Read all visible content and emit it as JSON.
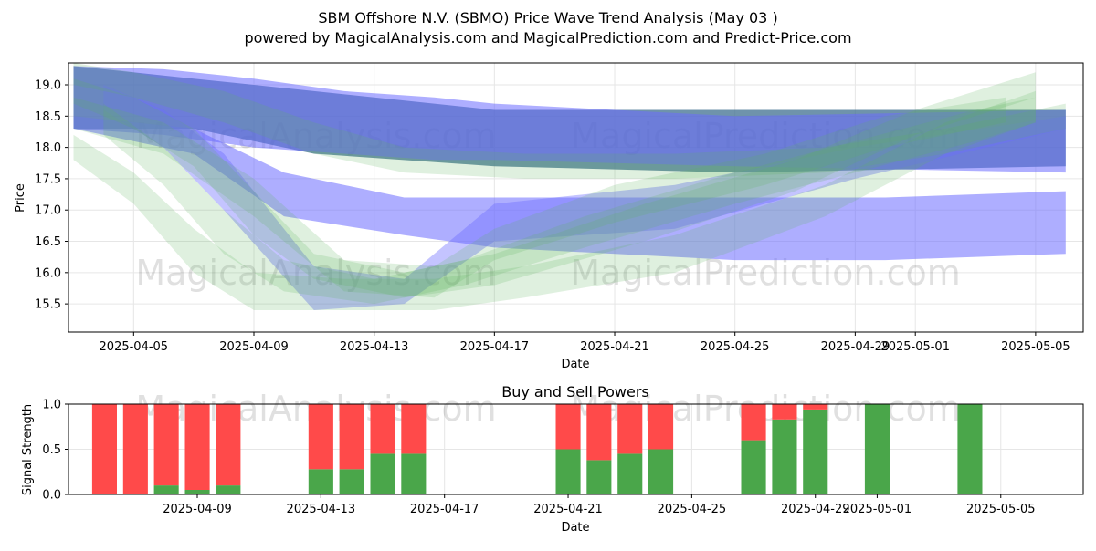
{
  "title_line1": "SBM Offshore N.V. (SBMO) Price Wave Trend Analysis (May 03 )",
  "title_line2": "powered by MagicalAnalysis.com and MagicalPrediction.com and Predict-Price.com",
  "watermarks": [
    "MagicalAnalysis.com",
    "MagicalPrediction.com"
  ],
  "colors": {
    "blue_band": "#6b6bff",
    "green_band": "#5fb65f",
    "dark_band": "#3f6f8f",
    "buy": "#4aa64a",
    "sell": "#ff4a4a",
    "grid": "#e6e6e6"
  },
  "chart_data": [
    {
      "type": "area",
      "title": "",
      "xlabel": "Date",
      "ylabel": "Price",
      "x_range": [
        "2025-04-02T20:00",
        "2025-05-06T14:00"
      ],
      "ylim": [
        15.05,
        19.35
      ],
      "yticks": [
        15.5,
        16.0,
        16.5,
        17.0,
        17.5,
        18.0,
        18.5,
        19.0
      ],
      "ytick_labels": [
        "15.5",
        "16.0",
        "16.5",
        "17.0",
        "17.5",
        "18.0",
        "18.5",
        "19.0"
      ],
      "xticks": [
        "2025-04-05",
        "2025-04-09",
        "2025-04-13",
        "2025-04-17",
        "2025-04-21",
        "2025-04-25",
        "2025-04-29",
        "2025-05-01",
        "2025-05-05"
      ],
      "xtick_labels": [
        "2025-04-05",
        "2025-04-09",
        "2025-04-13",
        "2025-04-17",
        "2025-04-21",
        "2025-04-25",
        "2025-04-29",
        "2025-05-01",
        "2025-05-05"
      ],
      "grid": true,
      "bands": [
        {
          "name": "dark band",
          "color": "dark",
          "opacity": 0.75,
          "dates": [
            "2025-04-03",
            "2025-04-07",
            "2025-04-11",
            "2025-04-17",
            "2025-04-25",
            "2025-05-06"
          ],
          "upper": [
            19.3,
            19.1,
            18.9,
            18.6,
            18.6,
            18.6
          ],
          "lower": [
            18.3,
            18.3,
            17.9,
            17.7,
            17.6,
            17.7
          ]
        },
        {
          "name": "blue band 1",
          "color": "blue",
          "opacity": 0.55,
          "dates": [
            "2025-04-03",
            "2025-04-06",
            "2025-04-09",
            "2025-04-12",
            "2025-04-15",
            "2025-04-17",
            "2025-04-25",
            "2025-05-06"
          ],
          "upper": [
            19.3,
            19.25,
            19.1,
            18.9,
            18.8,
            18.7,
            18.5,
            18.6
          ],
          "lower": [
            18.3,
            18.2,
            18.0,
            17.9,
            17.8,
            17.8,
            17.7,
            17.6
          ]
        },
        {
          "name": "blue band 2",
          "color": "blue",
          "opacity": 0.55,
          "dates": [
            "2025-04-03",
            "2025-04-07",
            "2025-04-10",
            "2025-04-14",
            "2025-04-17",
            "2025-04-25",
            "2025-04-30",
            "2025-05-06"
          ],
          "upper": [
            18.5,
            18.3,
            17.6,
            17.2,
            17.2,
            17.2,
            17.2,
            17.3
          ],
          "lower": [
            18.3,
            17.9,
            16.9,
            16.6,
            16.4,
            16.2,
            16.2,
            16.3
          ]
        },
        {
          "name": "blue band 3",
          "color": "blue",
          "opacity": 0.4,
          "dates": [
            "2025-04-04",
            "2025-04-06",
            "2025-04-08",
            "2025-04-11",
            "2025-04-14",
            "2025-04-17",
            "2025-04-23",
            "2025-04-29",
            "2025-05-06"
          ],
          "upper": [
            19.0,
            18.6,
            17.9,
            16.1,
            15.9,
            17.1,
            17.4,
            18.0,
            18.5
          ],
          "lower": [
            18.6,
            18.0,
            17.0,
            15.4,
            15.5,
            16.5,
            16.7,
            17.5,
            18.3
          ]
        },
        {
          "name": "green wave 1",
          "color": "green",
          "opacity": 0.2,
          "dates": [
            "2025-04-03",
            "2025-04-05",
            "2025-04-07",
            "2025-04-09",
            "2025-04-11",
            "2025-04-14",
            "2025-04-17",
            "2025-04-22",
            "2025-04-27",
            "2025-05-01",
            "2025-05-05"
          ],
          "upper": [
            19.1,
            18.8,
            18.3,
            17.3,
            16.3,
            16.0,
            16.3,
            17.1,
            17.8,
            18.6,
            19.2
          ],
          "lower": [
            18.7,
            18.3,
            17.7,
            16.6,
            15.9,
            15.6,
            15.8,
            16.5,
            17.3,
            18.2,
            18.8
          ]
        },
        {
          "name": "green wave 2",
          "color": "green",
          "opacity": 0.2,
          "dates": [
            "2025-04-03",
            "2025-04-05",
            "2025-04-07",
            "2025-04-09",
            "2025-04-12",
            "2025-04-15",
            "2025-04-18",
            "2025-04-23",
            "2025-04-28",
            "2025-05-02",
            "2025-05-05"
          ],
          "upper": [
            18.2,
            17.6,
            16.7,
            16.0,
            15.9,
            15.9,
            16.1,
            16.6,
            17.4,
            18.4,
            18.9
          ],
          "lower": [
            17.8,
            17.1,
            16.0,
            15.4,
            15.4,
            15.4,
            15.6,
            16.0,
            16.9,
            17.9,
            18.4
          ]
        },
        {
          "name": "green wave 3",
          "color": "green",
          "opacity": 0.2,
          "dates": [
            "2025-04-03",
            "2025-04-06",
            "2025-04-09",
            "2025-04-12",
            "2025-04-15",
            "2025-04-17",
            "2025-04-21",
            "2025-04-26",
            "2025-04-30",
            "2025-05-04"
          ],
          "upper": [
            18.8,
            18.4,
            17.5,
            16.2,
            16.1,
            16.7,
            17.4,
            17.9,
            18.5,
            18.8
          ],
          "lower": [
            18.3,
            17.9,
            16.9,
            15.7,
            15.6,
            16.2,
            16.8,
            17.4,
            18.0,
            18.4
          ]
        },
        {
          "name": "green wave 4",
          "color": "green",
          "opacity": 0.2,
          "dates": [
            "2025-04-03",
            "2025-04-05",
            "2025-04-08",
            "2025-04-11",
            "2025-04-14",
            "2025-04-18",
            "2025-04-23",
            "2025-04-28",
            "2025-05-02",
            "2025-05-06"
          ],
          "upper": [
            19.35,
            19.2,
            18.9,
            18.4,
            18.0,
            17.9,
            17.9,
            18.0,
            18.3,
            18.7
          ],
          "lower": [
            19.0,
            18.8,
            18.4,
            17.9,
            17.6,
            17.5,
            17.5,
            17.6,
            17.9,
            18.3
          ]
        },
        {
          "name": "green wave 5",
          "color": "green",
          "opacity": 0.2,
          "dates": [
            "2025-04-04",
            "2025-04-06",
            "2025-04-08",
            "2025-04-10",
            "2025-04-13",
            "2025-04-16",
            "2025-04-20",
            "2025-04-25",
            "2025-04-29",
            "2025-05-03",
            "2025-05-05"
          ],
          "upper": [
            18.7,
            18.0,
            17.0,
            16.2,
            15.9,
            16.2,
            16.9,
            17.6,
            18.1,
            18.6,
            18.8
          ],
          "lower": [
            18.2,
            17.4,
            16.3,
            15.7,
            15.5,
            15.8,
            16.4,
            17.1,
            17.6,
            18.1,
            18.4
          ]
        }
      ]
    },
    {
      "type": "bar",
      "stacked": true,
      "title": "Buy and Sell Powers",
      "xlabel": "Date",
      "ylabel": "Signal Strength",
      "x_range": [
        "2025-04-04T20:00",
        "2025-05-07T16:00"
      ],
      "ylim": [
        0.0,
        1.0
      ],
      "yticks": [
        0.0,
        0.5,
        1.0
      ],
      "ytick_labels": [
        "0.0",
        "0.5",
        "1.0"
      ],
      "xticks": [
        "2025-04-09",
        "2025-04-13",
        "2025-04-17",
        "2025-04-21",
        "2025-04-25",
        "2025-04-29",
        "2025-05-01",
        "2025-05-05"
      ],
      "xtick_labels": [
        "2025-04-09",
        "2025-04-13",
        "2025-04-17",
        "2025-04-21",
        "2025-04-25",
        "2025-04-29",
        "2025-05-01",
        "2025-05-05"
      ],
      "grid": true,
      "dates": [
        "2025-04-06",
        "2025-04-07",
        "2025-04-08",
        "2025-04-09",
        "2025-04-10",
        "2025-04-13",
        "2025-04-14",
        "2025-04-15",
        "2025-04-16",
        "2025-04-21",
        "2025-04-22",
        "2025-04-23",
        "2025-04-24",
        "2025-04-27",
        "2025-04-28",
        "2025-04-29",
        "2025-05-01",
        "2025-05-04"
      ],
      "series": [
        {
          "name": "Buy",
          "color": "buy",
          "values": [
            0.0,
            0.0,
            0.1,
            0.05,
            0.1,
            0.28,
            0.28,
            0.45,
            0.45,
            0.5,
            0.38,
            0.45,
            0.5,
            0.6,
            0.83,
            0.94,
            1.0,
            1.0
          ]
        },
        {
          "name": "Sell",
          "color": "sell",
          "values": [
            1.0,
            1.0,
            0.9,
            0.95,
            0.9,
            0.72,
            0.72,
            0.55,
            0.55,
            0.5,
            0.62,
            0.55,
            0.5,
            0.4,
            0.17,
            0.06,
            0.0,
            0.0
          ]
        }
      ]
    }
  ]
}
